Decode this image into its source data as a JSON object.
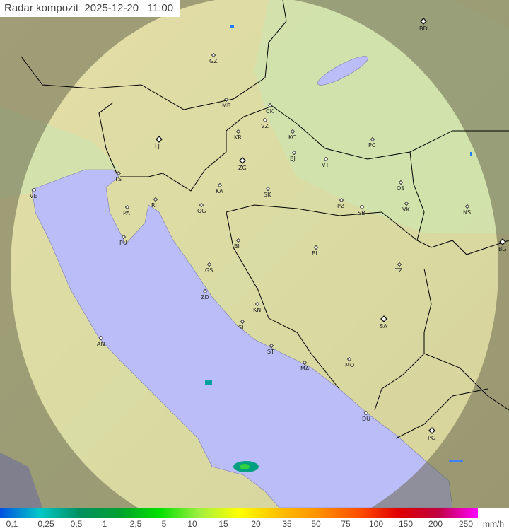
{
  "title": {
    "label": "Radar kompozit",
    "date": "2025-12-20",
    "time": "11:00"
  },
  "colors": {
    "land": "#d9dca4",
    "land_green": "#c9e0a8",
    "sea": "#bbbdf8",
    "outside_coverage": "#8d8c66",
    "border": "#000000"
  },
  "legend": {
    "unit": "mm/h",
    "labels": [
      "0,1",
      "0,25",
      "0,5",
      "1",
      "2,5",
      "5",
      "10",
      "15",
      "20",
      "35",
      "50",
      "75",
      "100",
      "150",
      "200",
      "250"
    ],
    "gradient": [
      "#0050e0",
      "#00c8c8",
      "#009060",
      "#00a030",
      "#00e000",
      "#a0f040",
      "#ffff00",
      "#ffc000",
      "#ff9000",
      "#ff5000",
      "#e00000",
      "#c00040",
      "#ff00ff"
    ]
  },
  "cities": [
    {
      "code": "BD",
      "capital": true
    },
    {
      "code": "GZ"
    },
    {
      "code": "MB"
    },
    {
      "code": "CK"
    },
    {
      "code": "VZ"
    },
    {
      "code": "KR"
    },
    {
      "code": "KC"
    },
    {
      "code": "LJ",
      "capital": true
    },
    {
      "code": "PC"
    },
    {
      "code": "ZG",
      "capital": true
    },
    {
      "code": "BJ"
    },
    {
      "code": "VT"
    },
    {
      "code": "TS"
    },
    {
      "code": "VE"
    },
    {
      "code": "KA"
    },
    {
      "code": "SK"
    },
    {
      "code": "RI"
    },
    {
      "code": "PA"
    },
    {
      "code": "OG"
    },
    {
      "code": "PZ"
    },
    {
      "code": "SB"
    },
    {
      "code": "OS"
    },
    {
      "code": "VK"
    },
    {
      "code": "NS"
    },
    {
      "code": "PU"
    },
    {
      "code": "BI"
    },
    {
      "code": "BL"
    },
    {
      "code": "BG",
      "capital": true
    },
    {
      "code": "GS"
    },
    {
      "code": "TZ"
    },
    {
      "code": "ZD"
    },
    {
      "code": "KN"
    },
    {
      "code": "SA",
      "capital": true
    },
    {
      "code": "SI"
    },
    {
      "code": "AN"
    },
    {
      "code": "ST"
    },
    {
      "code": "MA"
    },
    {
      "code": "MO"
    },
    {
      "code": "DU"
    },
    {
      "code": "PG",
      "capital": true
    }
  ]
}
